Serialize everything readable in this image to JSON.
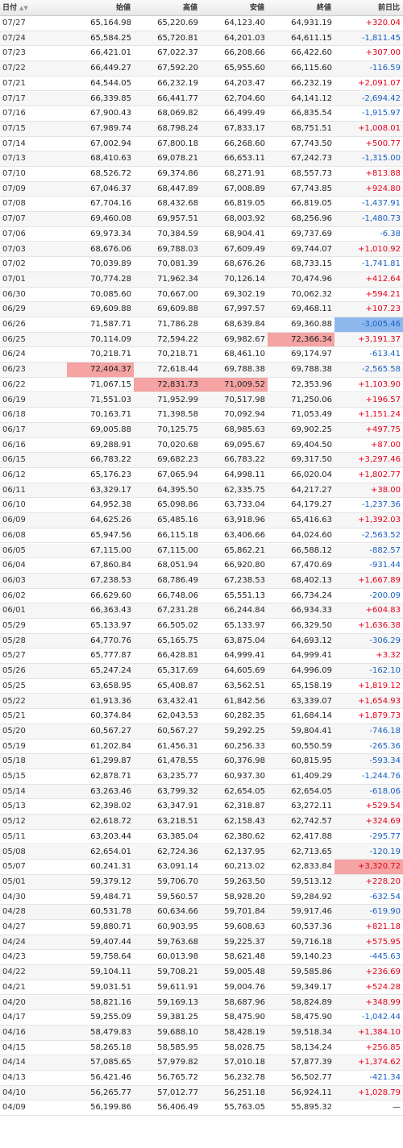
{
  "table": {
    "header": [
      "日付",
      "始値",
      "高値",
      "安値",
      "終値",
      "前日比"
    ],
    "rows": [
      [
        "07/27",
        "65,164.98",
        "65,220.69",
        "64,123.40",
        "64,931.19",
        "+320.04"
      ],
      [
        "07/24",
        "65,584.25",
        "65,720.81",
        "64,201.03",
        "64,611.15",
        "-1,811.45"
      ],
      [
        "07/23",
        "66,421.01",
        "67,022.37",
        "66,208.66",
        "66,422.60",
        "+307.00"
      ],
      [
        "07/22",
        "66,449.27",
        "67,592.20",
        "65,955.60",
        "66,115.60",
        "-116.59"
      ],
      [
        "07/21",
        "64,544.05",
        "66,232.19",
        "64,203.47",
        "66,232.19",
        "+2,091.07"
      ],
      [
        "07/17",
        "66,339.85",
        "66,441.77",
        "62,704.60",
        "64,141.12",
        "-2,694.42"
      ],
      [
        "07/16",
        "67,900.43",
        "68,069.82",
        "66,499.49",
        "66,835.54",
        "-1,915.97"
      ],
      [
        "07/15",
        "67,989.74",
        "68,798.24",
        "67,833.17",
        "68,751.51",
        "+1,008.01"
      ],
      [
        "07/14",
        "67,002.94",
        "67,800.18",
        "66,268.60",
        "67,743.50",
        "+500.77"
      ],
      [
        "07/13",
        "68,410.63",
        "69,078.21",
        "66,653.11",
        "67,242.73",
        "-1,315.00"
      ],
      [
        "07/10",
        "68,526.72",
        "69,374.86",
        "68,271.91",
        "68,557.73",
        "+813.88"
      ],
      [
        "07/09",
        "67,046.37",
        "68,447.89",
        "67,008.89",
        "67,743.85",
        "+924.80"
      ],
      [
        "07/08",
        "67,704.16",
        "68,432.68",
        "66,819.05",
        "66,819.05",
        "-1,437.91"
      ],
      [
        "07/07",
        "69,460.08",
        "69,957.51",
        "68,003.92",
        "68,256.96",
        "-1,480.73"
      ],
      [
        "07/06",
        "69,973.34",
        "70,384.59",
        "68,904.41",
        "69,737.69",
        "-6.38"
      ],
      [
        "07/03",
        "68,676.06",
        "69,788.03",
        "67,609.49",
        "69,744.07",
        "+1,010.92"
      ],
      [
        "07/02",
        "70,039.89",
        "70,081.39",
        "68,676.26",
        "68,733.15",
        "-1,741.81"
      ],
      [
        "07/01",
        "70,774.28",
        "71,962.34",
        "70,126.14",
        "70,474.96",
        "+412.64"
      ],
      [
        "06/30",
        "70,085.60",
        "70,667.00",
        "69,302.19",
        "70,062.32",
        "+594.21"
      ],
      [
        "06/29",
        "69,609.88",
        "69,609.88",
        "67,997.57",
        "69,468.11",
        "+107.23"
      ],
      [
        "06/26",
        "71,587.71",
        "71,786.28",
        "68,639.84",
        "69,360.88",
        "-3,005.46"
      ],
      [
        "06/25",
        "70,114.09",
        "72,594.22",
        "69,982.67",
        "72,366.34",
        "+3,191.37"
      ],
      [
        "06/24",
        "70,218.71",
        "70,218.71",
        "68,461.10",
        "69,174.97",
        "-613.41"
      ],
      [
        "06/23",
        "72,404.37",
        "72,618.44",
        "69,788.38",
        "69,788.38",
        "-2,565.58"
      ],
      [
        "06/22",
        "71,067.15",
        "72,831.73",
        "71,009.52",
        "72,353.96",
        "+1,103.90"
      ],
      [
        "06/19",
        "71,551.03",
        "71,952.99",
        "70,517.98",
        "71,250.06",
        "+196.57"
      ],
      [
        "06/18",
        "70,163.71",
        "71,398.58",
        "70,092.94",
        "71,053.49",
        "+1,151.24"
      ],
      [
        "06/17",
        "69,005.88",
        "70,125.75",
        "68,985.63",
        "69,902.25",
        "+497.75"
      ],
      [
        "06/16",
        "69,288.91",
        "70,020.68",
        "69,095.67",
        "69,404.50",
        "+87.00"
      ],
      [
        "06/15",
        "66,783.22",
        "69,682.23",
        "66,783.22",
        "69,317.50",
        "+3,297.46"
      ],
      [
        "06/12",
        "65,176.23",
        "67,065.94",
        "64,998.11",
        "66,020.04",
        "+1,802.77"
      ],
      [
        "06/11",
        "63,329.17",
        "64,395.50",
        "62,335.75",
        "64,217.27",
        "+38.00"
      ],
      [
        "06/10",
        "64,952.38",
        "65,098.86",
        "63,733.04",
        "64,179.27",
        "-1,237.36"
      ],
      [
        "06/09",
        "64,625.26",
        "65,485.16",
        "63,918.96",
        "65,416.63",
        "+1,392.03"
      ],
      [
        "06/08",
        "65,947.56",
        "66,115.18",
        "63,406.66",
        "64,024.60",
        "-2,563.52"
      ],
      [
        "06/05",
        "67,115.00",
        "67,115.00",
        "65,862.21",
        "66,588.12",
        "-882.57"
      ],
      [
        "06/04",
        "67,860.84",
        "68,051.94",
        "66,920.80",
        "67,470.69",
        "-931.44"
      ],
      [
        "06/03",
        "67,238.53",
        "68,786.49",
        "67,238.53",
        "68,402.13",
        "+1,667.89"
      ],
      [
        "06/02",
        "66,629.60",
        "66,748.06",
        "65,551.13",
        "66,734.24",
        "-200.09"
      ],
      [
        "06/01",
        "66,363.43",
        "67,231.28",
        "66,244.84",
        "66,934.33",
        "+604.83"
      ],
      [
        "05/29",
        "65,133.97",
        "66,505.02",
        "65,133.97",
        "66,329.50",
        "+1,636.38"
      ],
      [
        "05/28",
        "64,770.76",
        "65,165.75",
        "63,875.04",
        "64,693.12",
        "-306.29"
      ],
      [
        "05/27",
        "65,777.87",
        "66,428.81",
        "64,999.41",
        "64,999.41",
        "+3.32"
      ],
      [
        "05/26",
        "65,247.24",
        "65,317.69",
        "64,605.69",
        "64,996.09",
        "-162.10"
      ],
      [
        "05/25",
        "63,658.95",
        "65,408.87",
        "63,562.51",
        "65,158.19",
        "+1,819.12"
      ],
      [
        "05/22",
        "61,913.36",
        "63,432.41",
        "61,842.56",
        "63,339.07",
        "+1,654.93"
      ],
      [
        "05/21",
        "60,374.84",
        "62,043.53",
        "60,282.35",
        "61,684.14",
        "+1,879.73"
      ],
      [
        "05/20",
        "60,567.27",
        "60,567.27",
        "59,292.25",
        "59,804.41",
        "-746.18"
      ],
      [
        "05/19",
        "61,202.84",
        "61,456.31",
        "60,256.33",
        "60,550.59",
        "-265.36"
      ],
      [
        "05/18",
        "61,299.87",
        "61,478.55",
        "60,376.98",
        "60,815.95",
        "-593.34"
      ],
      [
        "05/15",
        "62,878.71",
        "63,235.77",
        "60,937.30",
        "61,409.29",
        "-1,244.76"
      ],
      [
        "05/14",
        "63,263.46",
        "63,799.32",
        "62,654.05",
        "62,654.05",
        "-618.06"
      ],
      [
        "05/13",
        "62,398.02",
        "63,347.91",
        "62,318.87",
        "63,272.11",
        "+529.54"
      ],
      [
        "05/12",
        "62,618.72",
        "63,218.51",
        "62,158.43",
        "62,742.57",
        "+324.69"
      ],
      [
        "05/11",
        "63,203.44",
        "63,385.04",
        "62,380.62",
        "62,417.88",
        "-295.77"
      ],
      [
        "05/08",
        "62,654.01",
        "62,724.36",
        "62,137.95",
        "62,713.65",
        "-120.19"
      ],
      [
        "05/07",
        "60,241.31",
        "63,091.14",
        "60,213.02",
        "62,833.84",
        "+3,320.72"
      ],
      [
        "05/01",
        "59,379.12",
        "59,706.70",
        "59,263.50",
        "59,513.12",
        "+228.20"
      ],
      [
        "04/30",
        "59,484.71",
        "59,560.57",
        "58,928.20",
        "59,284.92",
        "-632.54"
      ],
      [
        "04/28",
        "60,531.78",
        "60,634.66",
        "59,701.84",
        "59,917.46",
        "-619.90"
      ],
      [
        "04/27",
        "59,880.71",
        "60,903.95",
        "59,608.63",
        "60,537.36",
        "+821.18"
      ],
      [
        "04/24",
        "59,407.44",
        "59,763.68",
        "59,225.37",
        "59,716.18",
        "+575.95"
      ],
      [
        "04/23",
        "59,758.64",
        "60,013.98",
        "58,621.48",
        "59,140.23",
        "-445.63"
      ],
      [
        "04/22",
        "59,104.11",
        "59,708.21",
        "59,005.48",
        "59,585.86",
        "+236.69"
      ],
      [
        "04/21",
        "59,031.51",
        "59,611.91",
        "59,004.76",
        "59,349.17",
        "+524.28"
      ],
      [
        "04/20",
        "58,821.16",
        "59,169.13",
        "58,687.96",
        "58,824.89",
        "+348.99"
      ],
      [
        "04/17",
        "59,255.09",
        "59,381.25",
        "58,475.90",
        "58,475.90",
        "-1,042.44"
      ],
      [
        "04/16",
        "58,479.83",
        "59,688.10",
        "58,428.19",
        "59,518.34",
        "+1,384.10"
      ],
      [
        "04/15",
        "58,265.18",
        "58,585.95",
        "58,028.75",
        "58,134.24",
        "+256.85"
      ],
      [
        "04/14",
        "57,085.65",
        "57,979.82",
        "57,010.18",
        "57,877.39",
        "+1,374.62"
      ],
      [
        "04/13",
        "56,421.46",
        "56,765.72",
        "56,232.78",
        "56,502.77",
        "-421.34"
      ],
      [
        "04/10",
        "56,265.77",
        "57,012.77",
        "56,251.18",
        "56,924.11",
        "+1,028.79"
      ],
      [
        "04/09",
        "56,199.86",
        "56,406.49",
        "55,763.05",
        "55,895.32",
        "—"
      ]
    ]
  }
}
